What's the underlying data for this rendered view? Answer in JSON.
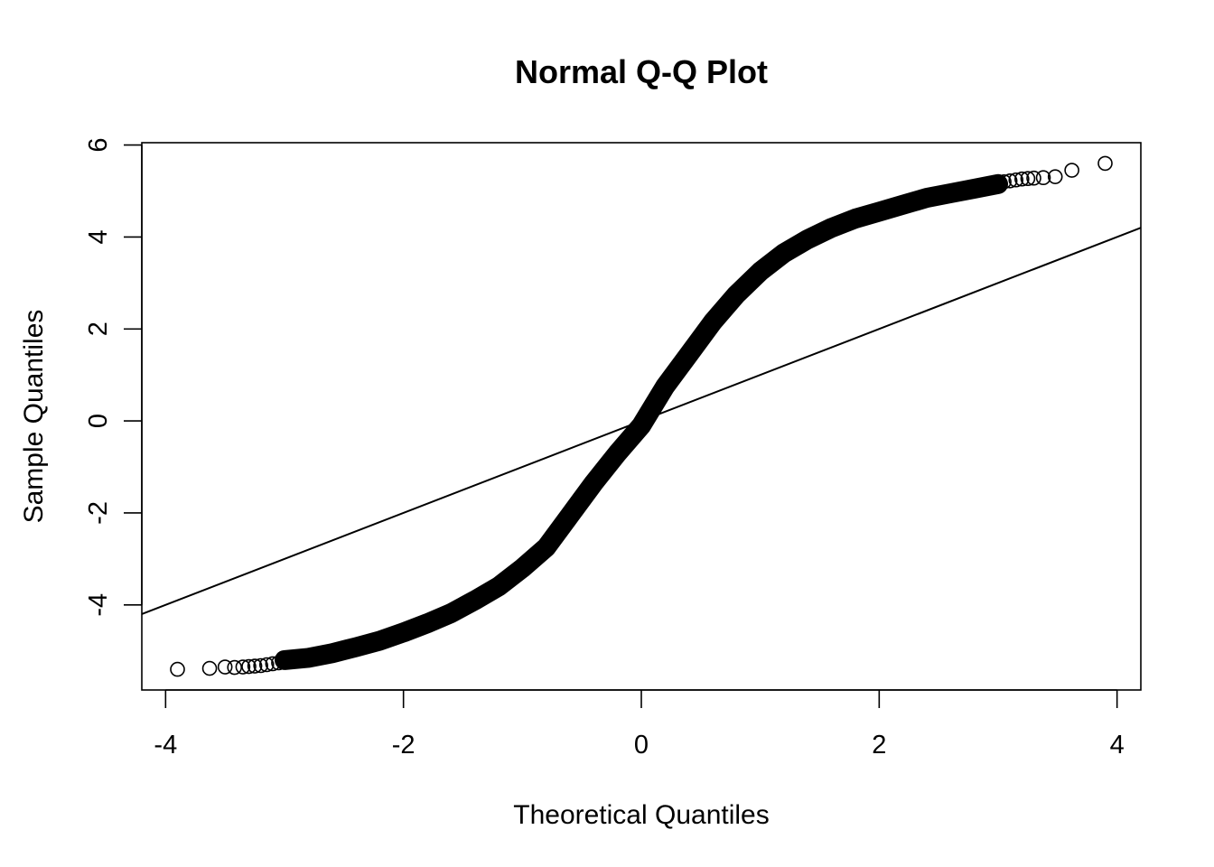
{
  "chart_data": {
    "type": "scatter",
    "title": "Normal Q-Q Plot",
    "xlabel": "Theoretical Quantiles",
    "ylabel": "Sample Quantiles",
    "xlim": [
      -4.2,
      4.2
    ],
    "ylim": [
      -5.85,
      6.05
    ],
    "x_ticks": [
      -4,
      -2,
      0,
      2,
      4
    ],
    "x_tick_labels": [
      "-4",
      "-2",
      "0",
      "2",
      "4"
    ],
    "y_ticks": [
      -4,
      -2,
      0,
      2,
      4,
      6
    ],
    "y_tick_labels": [
      "-4",
      "-2",
      "0",
      "2",
      "4",
      "6"
    ],
    "marker": "open-circle",
    "reference_line": {
      "intercept": 0,
      "slope": 1.0
    },
    "curve": {
      "x": [
        -3.0,
        -2.8,
        -2.6,
        -2.4,
        -2.2,
        -2.0,
        -1.8,
        -1.6,
        -1.4,
        -1.2,
        -1.0,
        -0.8,
        -0.6,
        -0.4,
        -0.2,
        0.0,
        0.2,
        0.4,
        0.6,
        0.8,
        1.0,
        1.2,
        1.4,
        1.6,
        1.8,
        2.0,
        2.2,
        2.4,
        2.6,
        2.8,
        3.0
      ],
      "y": [
        -5.2,
        -5.15,
        -5.05,
        -4.92,
        -4.78,
        -4.6,
        -4.4,
        -4.18,
        -3.9,
        -3.6,
        -3.2,
        -2.75,
        -2.05,
        -1.35,
        -0.7,
        -0.1,
        0.75,
        1.45,
        2.15,
        2.75,
        3.25,
        3.65,
        3.95,
        4.2,
        4.4,
        4.55,
        4.7,
        4.85,
        4.95,
        5.05,
        5.15
      ]
    },
    "tail_points": [
      {
        "x": -3.9,
        "y": -5.4
      },
      {
        "x": -3.63,
        "y": -5.38
      },
      {
        "x": -3.5,
        "y": -5.35
      },
      {
        "x": -3.42,
        "y": -5.36
      },
      {
        "x": -3.35,
        "y": -5.35
      },
      {
        "x": -3.3,
        "y": -5.34
      },
      {
        "x": -3.25,
        "y": -5.33
      },
      {
        "x": -3.2,
        "y": -5.32
      },
      {
        "x": -3.15,
        "y": -5.3
      },
      {
        "x": -3.1,
        "y": -5.28
      },
      {
        "x": -3.05,
        "y": -5.26
      },
      {
        "x": 3.05,
        "y": 5.2
      },
      {
        "x": 3.1,
        "y": 5.22
      },
      {
        "x": 3.15,
        "y": 5.24
      },
      {
        "x": 3.2,
        "y": 5.26
      },
      {
        "x": 3.25,
        "y": 5.27
      },
      {
        "x": 3.3,
        "y": 5.28
      },
      {
        "x": 3.38,
        "y": 5.29
      },
      {
        "x": 3.48,
        "y": 5.31
      },
      {
        "x": 3.62,
        "y": 5.45
      },
      {
        "x": 3.9,
        "y": 5.6
      }
    ],
    "grid": false,
    "legend": "none"
  }
}
